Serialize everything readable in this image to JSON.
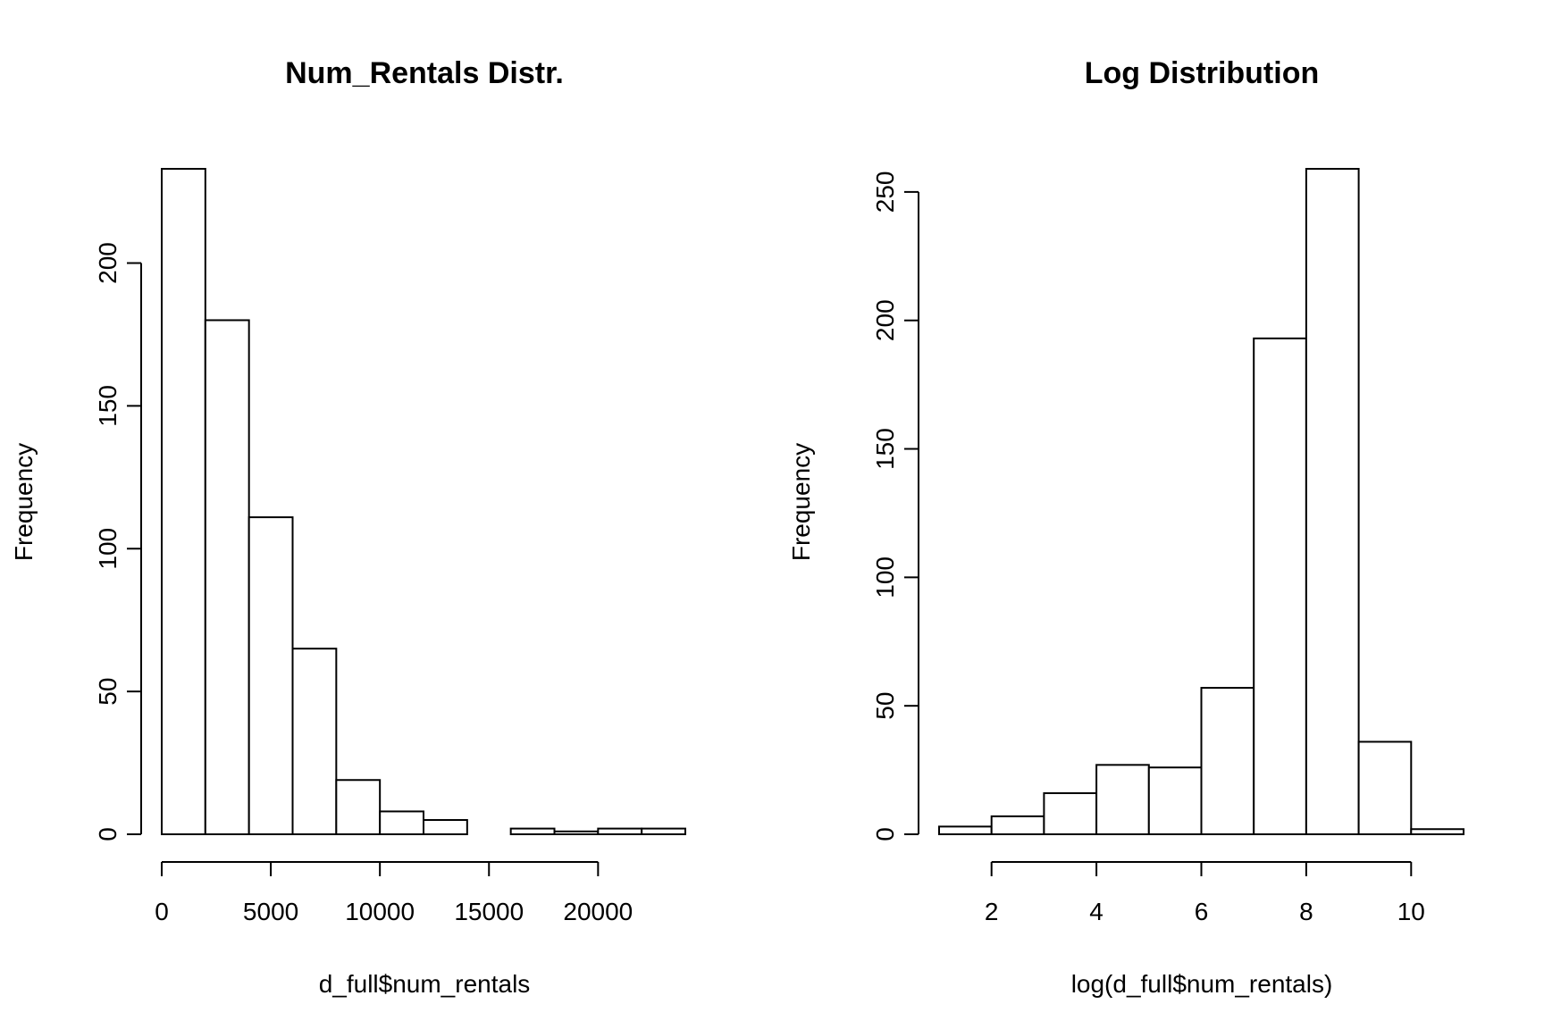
{
  "chart_data": [
    {
      "type": "bar",
      "title": "Num_Rentals Distr.",
      "xlabel": "d_full$num_rentals",
      "ylabel": "Frequency",
      "bin_edges": [
        0,
        2000,
        4000,
        6000,
        8000,
        10000,
        12000,
        14000,
        16000,
        18000,
        20000,
        22000,
        24000
      ],
      "values": [
        233,
        180,
        111,
        65,
        19,
        8,
        5,
        0,
        2,
        1,
        2,
        2
      ],
      "xticks": [
        0,
        5000,
        10000,
        15000,
        20000
      ],
      "xtick_labels": [
        "0",
        "5000",
        "10000",
        "15000",
        "20000"
      ],
      "yticks": [
        0,
        50,
        100,
        150,
        200
      ],
      "ytick_labels": [
        "0",
        "50",
        "100",
        "150",
        "200"
      ],
      "xlim": [
        0,
        24000
      ],
      "ylim": [
        0,
        233
      ],
      "grid": false
    },
    {
      "type": "bar",
      "title": "Log Distribution",
      "xlabel": "log(d_full$num_rentals)",
      "ylabel": "Frequency",
      "bin_edges": [
        1,
        2,
        3,
        4,
        5,
        6,
        7,
        8,
        9,
        10,
        11
      ],
      "values": [
        3,
        7,
        16,
        27,
        26,
        57,
        193,
        259,
        36,
        2
      ],
      "xticks": [
        2,
        4,
        6,
        8,
        10
      ],
      "xtick_labels": [
        "2",
        "4",
        "6",
        "8",
        "10"
      ],
      "yticks": [
        0,
        50,
        100,
        150,
        200,
        250
      ],
      "ytick_labels": [
        "0",
        "50",
        "100",
        "150",
        "200",
        "250"
      ],
      "xlim": [
        1,
        11
      ],
      "ylim": [
        0,
        259
      ],
      "grid": false
    }
  ]
}
